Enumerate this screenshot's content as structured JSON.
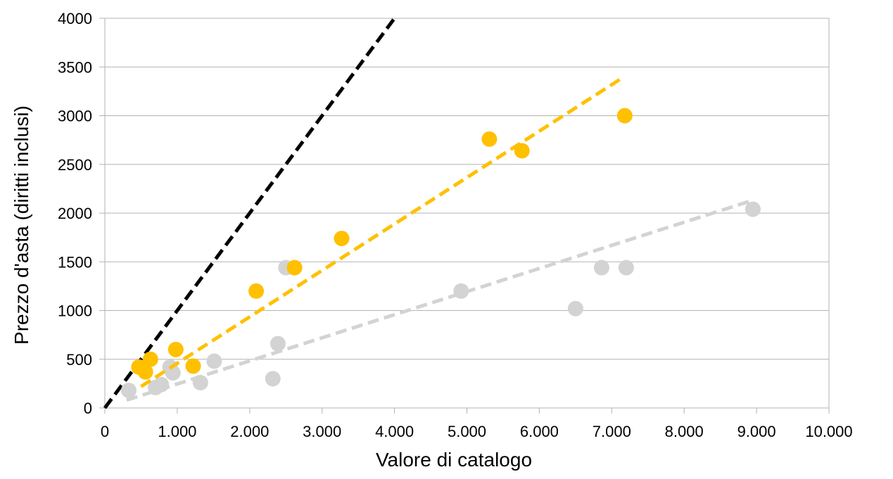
{
  "chart_data": {
    "type": "scatter",
    "title": "",
    "xlabel": "Valore di catalogo",
    "ylabel": "Prezzo d'asta (diritti inclusi)",
    "xlim": [
      0,
      10000
    ],
    "ylim": [
      0,
      4000
    ],
    "x_ticks": [
      0,
      1000,
      2000,
      3000,
      4000,
      5000,
      6000,
      7000,
      8000,
      9000,
      10000
    ],
    "x_tick_labels": [
      "0",
      "1.000",
      "2.000",
      "3.000",
      "4.000",
      "5.000",
      "6.000",
      "7.000",
      "8.000",
      "9.000",
      "10.000"
    ],
    "y_ticks": [
      0,
      500,
      1000,
      1500,
      2000,
      2500,
      3000,
      3500,
      4000
    ],
    "y_tick_labels": [
      "0",
      "500",
      "1000",
      "1500",
      "2000",
      "2500",
      "3000",
      "3500",
      "4000"
    ],
    "grid": "horizontal",
    "legend": "none",
    "series": [
      {
        "color": "#d3d3d3",
        "points": [
          [
            330,
            180
          ],
          [
            700,
            210
          ],
          [
            780,
            240
          ],
          [
            900,
            420
          ],
          [
            940,
            360
          ],
          [
            1320,
            260
          ],
          [
            1510,
            480
          ],
          [
            2320,
            300
          ],
          [
            2390,
            660
          ],
          [
            2500,
            1440
          ],
          [
            4920,
            1200
          ],
          [
            6500,
            1020
          ],
          [
            6860,
            1440
          ],
          [
            7200,
            1440
          ],
          [
            8950,
            2040
          ]
        ],
        "trendline": [
          [
            300,
            80
          ],
          [
            8900,
            2120
          ]
        ]
      },
      {
        "color": "#ffc000",
        "points": [
          [
            470,
            420
          ],
          [
            560,
            370
          ],
          [
            630,
            500
          ],
          [
            980,
            600
          ],
          [
            1220,
            430
          ],
          [
            2090,
            1200
          ],
          [
            2620,
            1440
          ],
          [
            3270,
            1740
          ],
          [
            5310,
            2760
          ],
          [
            5760,
            2640
          ],
          [
            7180,
            3000
          ]
        ],
        "trendline": [
          [
            500,
            220
          ],
          [
            7150,
            3390
          ]
        ]
      }
    ],
    "reference_line": {
      "color": "#000000",
      "from": [
        0,
        0
      ],
      "to": [
        4000,
        4000
      ]
    }
  }
}
